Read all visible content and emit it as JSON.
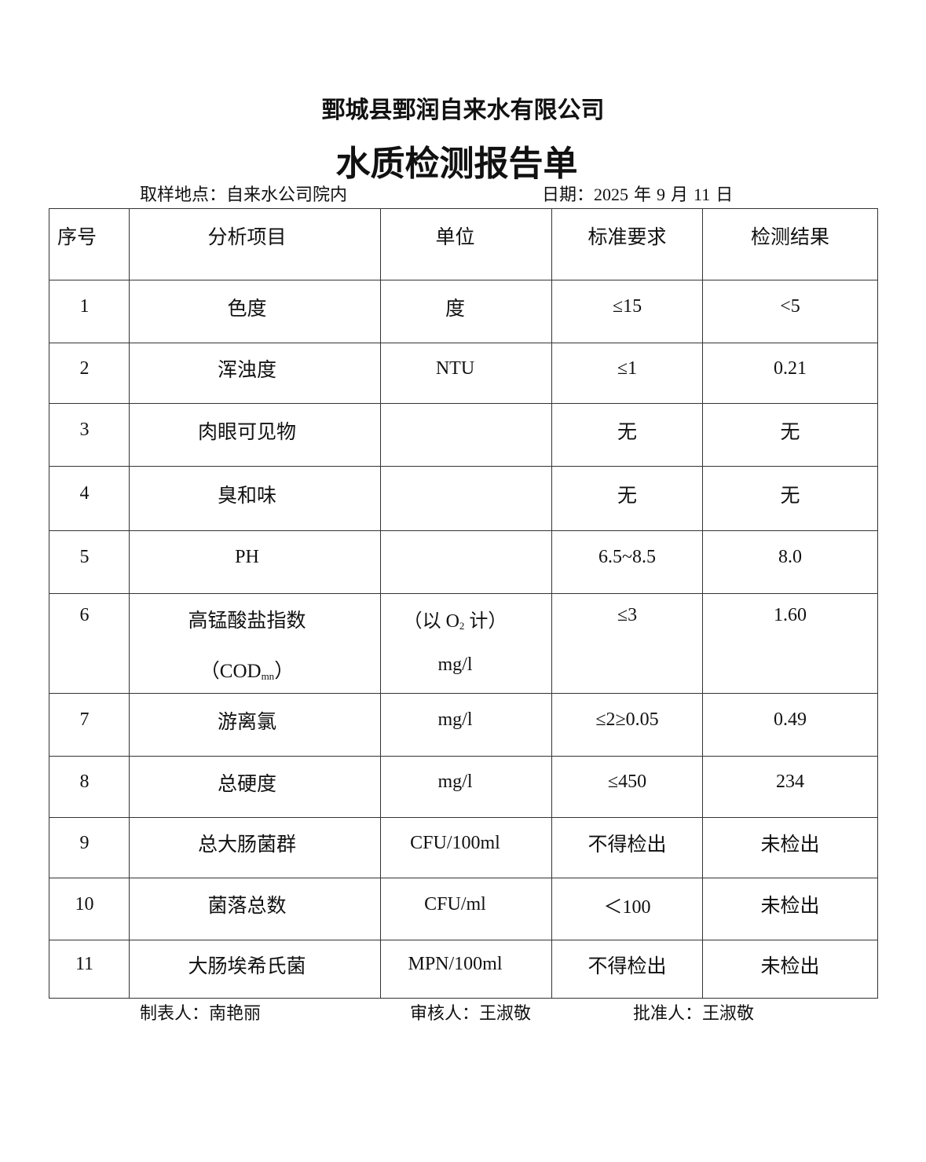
{
  "header": {
    "company": "鄄城县鄄润自来水有限公司",
    "title": "水质检测报告单",
    "location_label": "取样地点：",
    "location": "自来水公司院内",
    "date_label": "日期：",
    "date_year": "2025",
    "date_year_unit": "年",
    "date_month": "9",
    "date_month_unit": "月",
    "date_day": "11",
    "date_day_unit": "日"
  },
  "table": {
    "columns": [
      "序号",
      "分析项目",
      "单位",
      "标准要求",
      "检测结果"
    ],
    "rows": [
      {
        "no": "1",
        "item": "色度",
        "unit": "度",
        "standard": "≤15",
        "result": "<5"
      },
      {
        "no": "2",
        "item": "浑浊度",
        "unit": "NTU",
        "standard": "≤1",
        "result": "0.21"
      },
      {
        "no": "3",
        "item": "肉眼可见物",
        "unit": "",
        "standard": "无",
        "result": "无"
      },
      {
        "no": "4",
        "item": "臭和味",
        "unit": "",
        "standard": "无",
        "result": "无"
      },
      {
        "no": "5",
        "item": "PH",
        "unit": "",
        "standard": "6.5~8.5",
        "result": "8.0"
      },
      {
        "no": "6",
        "item": "高锰酸盐指数",
        "item_line2": "（COD",
        "item_sub": "mn",
        "item_close": "）",
        "unit": "（以 O",
        "unit_sub": "2",
        "unit_close": " 计）",
        "unit_line2": "mg/l",
        "standard": "≤3",
        "result": "1.60"
      },
      {
        "no": "7",
        "item": "游离氯",
        "unit": "mg/l",
        "standard": "≤2≥0.05",
        "result": "0.49"
      },
      {
        "no": "8",
        "item": "总硬度",
        "unit": "mg/l",
        "standard": "≤450",
        "result": "234"
      },
      {
        "no": "9",
        "item": "总大肠菌群",
        "unit": "CFU/100ml",
        "standard": "不得检出",
        "result": "未检出"
      },
      {
        "no": "10",
        "item": "菌落总数",
        "unit": "CFU/ml",
        "standard": "＜100",
        "result": "未检出"
      },
      {
        "no": "11",
        "item": "大肠埃希氏菌",
        "unit": "MPN/100ml",
        "standard": "不得检出",
        "result": "未检出"
      }
    ]
  },
  "footer": {
    "prepared_label": "制表人：",
    "prepared": "南艳丽",
    "reviewed_label": "审核人：",
    "reviewed": "王淑敬",
    "approved_label": "批准人：",
    "approved": "王淑敬"
  }
}
